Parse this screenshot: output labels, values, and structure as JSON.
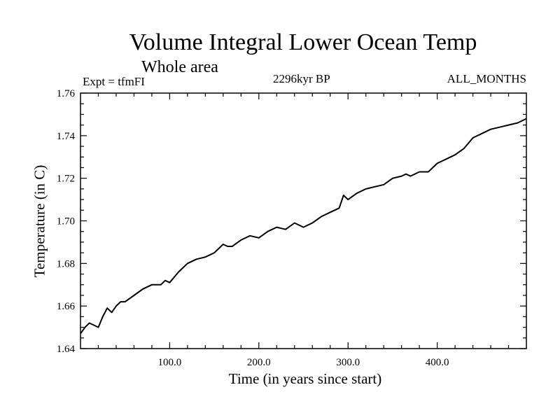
{
  "chart_data": {
    "type": "line",
    "title": "Volume Integral Lower Ocean Temp",
    "subtitle": "Whole area",
    "left_label": "Expt = tfmFI",
    "center_label": "2296kyr BP",
    "right_label": "ALL_MONTHS",
    "xlabel": "Time (in years since start)",
    "ylabel": "Temperature (in C)",
    "xlim": [
      0,
      500
    ],
    "ylim": [
      1.64,
      1.76
    ],
    "xticks": [
      100,
      200,
      300,
      400
    ],
    "xtick_labels": [
      "100.0",
      "200.0",
      "300.0",
      "400.0"
    ],
    "yticks": [
      1.64,
      1.66,
      1.68,
      1.7,
      1.72,
      1.74,
      1.76
    ],
    "ytick_labels": [
      "1.64",
      "1.66",
      "1.68",
      "1.70",
      "1.72",
      "1.74",
      "1.76"
    ],
    "grid": false,
    "series": [
      {
        "name": "temperature",
        "x": [
          0,
          5,
          10,
          15,
          20,
          25,
          30,
          35,
          40,
          45,
          50,
          60,
          70,
          80,
          90,
          95,
          100,
          110,
          120,
          130,
          140,
          150,
          160,
          165,
          170,
          180,
          190,
          200,
          210,
          220,
          230,
          240,
          250,
          260,
          270,
          280,
          290,
          295,
          300,
          310,
          320,
          330,
          340,
          350,
          360,
          365,
          370,
          380,
          390,
          400,
          410,
          420,
          430,
          440,
          450,
          460,
          470,
          480,
          490,
          500
        ],
        "values": [
          1.647,
          1.65,
          1.652,
          1.651,
          1.65,
          1.655,
          1.659,
          1.657,
          1.66,
          1.662,
          1.662,
          1.665,
          1.668,
          1.67,
          1.67,
          1.672,
          1.671,
          1.676,
          1.68,
          1.682,
          1.683,
          1.685,
          1.689,
          1.688,
          1.688,
          1.691,
          1.693,
          1.692,
          1.695,
          1.697,
          1.696,
          1.699,
          1.697,
          1.699,
          1.702,
          1.704,
          1.706,
          1.712,
          1.71,
          1.713,
          1.715,
          1.716,
          1.717,
          1.72,
          1.721,
          1.722,
          1.721,
          1.723,
          1.723,
          1.727,
          1.729,
          1.731,
          1.734,
          1.739,
          1.741,
          1.743,
          1.744,
          1.745,
          1.746,
          1.748
        ]
      }
    ]
  }
}
